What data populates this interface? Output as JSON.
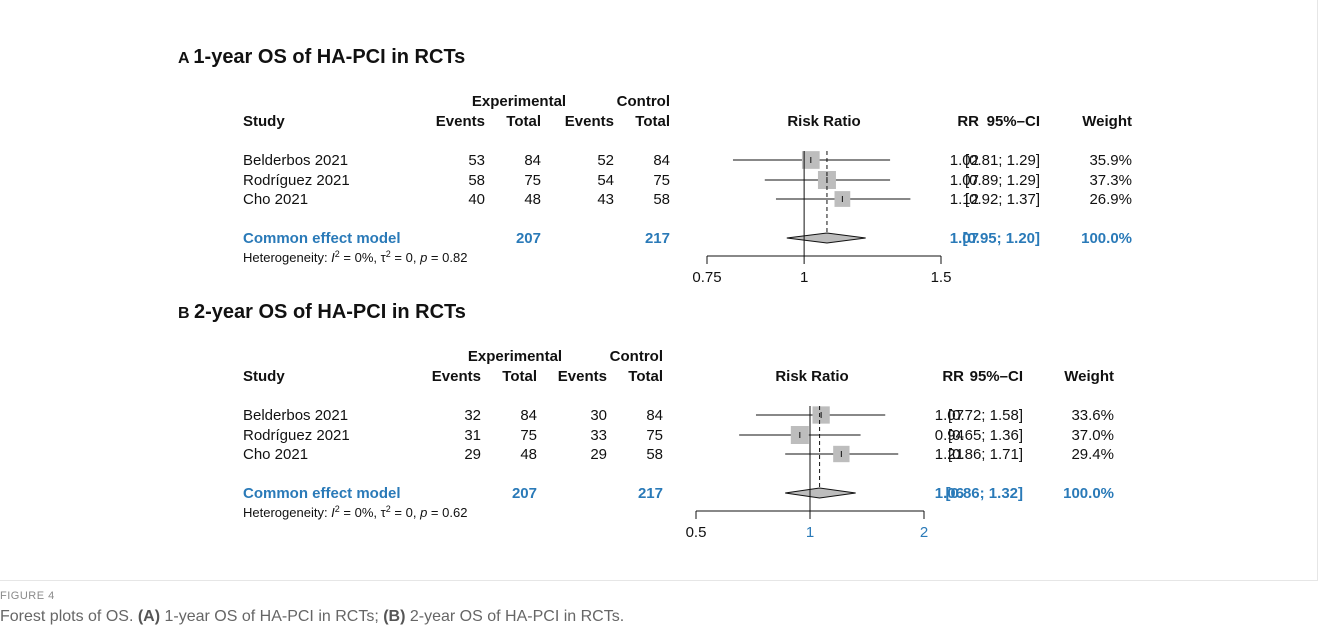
{
  "colors": {
    "accent": "#2a7ab8",
    "square": "#bdbdbd",
    "text": "#111111"
  },
  "chart_data": [
    {
      "type": "forest",
      "panel_letter": "A",
      "title": "1-year OS of HA-PCI in RCTs",
      "headers": {
        "experimental": "Experimental",
        "control": "Control",
        "study": "Study",
        "events": "Events",
        "total": "Total",
        "effect": "Risk Ratio",
        "rr": "RR",
        "ci": "95%–CI",
        "weight": "Weight"
      },
      "studies": [
        {
          "name": "Belderbos 2021",
          "exp_events": "53",
          "exp_total": "84",
          "ctl_events": "52",
          "ctl_total": "84",
          "rr": 1.02,
          "lo": 0.81,
          "hi": 1.29,
          "rr_text": "1.02",
          "ci_text": "[0.81; 1.29]",
          "weight_text": "35.9%",
          "weight": 35.9
        },
        {
          "name": "Rodríguez 2021",
          "exp_events": "58",
          "exp_total": "75",
          "ctl_events": "54",
          "ctl_total": "75",
          "rr": 1.07,
          "lo": 0.89,
          "hi": 1.29,
          "rr_text": "1.07",
          "ci_text": "[0.89; 1.29]",
          "weight_text": "37.3%",
          "weight": 37.3
        },
        {
          "name": "Cho 2021",
          "exp_events": "40",
          "exp_total": "48",
          "ctl_events": "43",
          "ctl_total": "58",
          "rr": 1.12,
          "lo": 0.92,
          "hi": 1.37,
          "rr_text": "1.12",
          "ci_text": "[0.92; 1.37]",
          "weight_text": "26.9%",
          "weight": 26.9
        }
      ],
      "pooled": {
        "label": "Common effect model",
        "exp_total": "207",
        "ctl_total": "217",
        "rr": 1.07,
        "lo": 0.95,
        "hi": 1.2,
        "rr_text": "1.07",
        "ci_text": "[0.95; 1.20]",
        "weight_text": "100.0%"
      },
      "heterogeneity": {
        "prefix": "Heterogeneity: ",
        "i2": "0%",
        "tau2": "0",
        "p": "0.82"
      },
      "axis": {
        "scale": "log",
        "min": 0.75,
        "max": 1.5,
        "ticks": [
          0.75,
          1,
          1.5
        ],
        "tick_labels": [
          "0.75",
          "1",
          "1.5"
        ],
        "tick_colors": [
          "#111111",
          "#111111",
          "#111111"
        ]
      }
    },
    {
      "type": "forest",
      "panel_letter": "B",
      "title": "2-year OS of HA-PCI in RCTs",
      "headers": {
        "experimental": "Experimental",
        "control": "Control",
        "study": "Study",
        "events": "Events",
        "total": "Total",
        "effect": "Risk Ratio",
        "rr": "RR",
        "ci": "95%–CI",
        "weight": "Weight"
      },
      "studies": [
        {
          "name": "Belderbos 2021",
          "exp_events": "32",
          "exp_total": "84",
          "ctl_events": "30",
          "ctl_total": "84",
          "rr": 1.07,
          "lo": 0.72,
          "hi": 1.58,
          "rr_text": "1.07",
          "ci_text": "[0.72; 1.58]",
          "weight_text": "33.6%",
          "weight": 33.6
        },
        {
          "name": "Rodríguez 2021",
          "exp_events": "31",
          "exp_total": "75",
          "ctl_events": "33",
          "ctl_total": "75",
          "rr": 0.94,
          "lo": 0.65,
          "hi": 1.36,
          "rr_text": "0.94",
          "ci_text": "[0.65; 1.36]",
          "weight_text": "37.0%",
          "weight": 37.0
        },
        {
          "name": "Cho 2021",
          "exp_events": "29",
          "exp_total": "48",
          "ctl_events": "29",
          "ctl_total": "58",
          "rr": 1.21,
          "lo": 0.86,
          "hi": 1.71,
          "rr_text": "1.21",
          "ci_text": "[0.86; 1.71]",
          "weight_text": "29.4%",
          "weight": 29.4
        }
      ],
      "pooled": {
        "label": "Common effect model",
        "exp_total": "207",
        "ctl_total": "217",
        "rr": 1.06,
        "lo": 0.86,
        "hi": 1.32,
        "rr_text": "1.06",
        "ci_text": "[0.86; 1.32]",
        "weight_text": "100.0%"
      },
      "heterogeneity": {
        "prefix": "Heterogeneity: ",
        "i2": "0%",
        "tau2": "0",
        "p": "0.62"
      },
      "axis": {
        "scale": "log",
        "min": 0.5,
        "max": 2,
        "ticks": [
          0.5,
          1,
          2
        ],
        "tick_labels": [
          "0.5",
          "1",
          "2"
        ],
        "tick_colors": [
          "#111111",
          "#2a7ab8",
          "#2a7ab8"
        ]
      }
    }
  ],
  "caption": {
    "label": "FIGURE 4",
    "text_parts": [
      {
        "t": "Forest plots of OS. ",
        "b": false
      },
      {
        "t": "(A)",
        "b": true
      },
      {
        "t": " 1-year OS of HA-PCI in RCTs; ",
        "b": false
      },
      {
        "t": "(B)",
        "b": true
      },
      {
        "t": " 2-year OS of HA-PCI in RCTs.",
        "b": false
      }
    ]
  }
}
